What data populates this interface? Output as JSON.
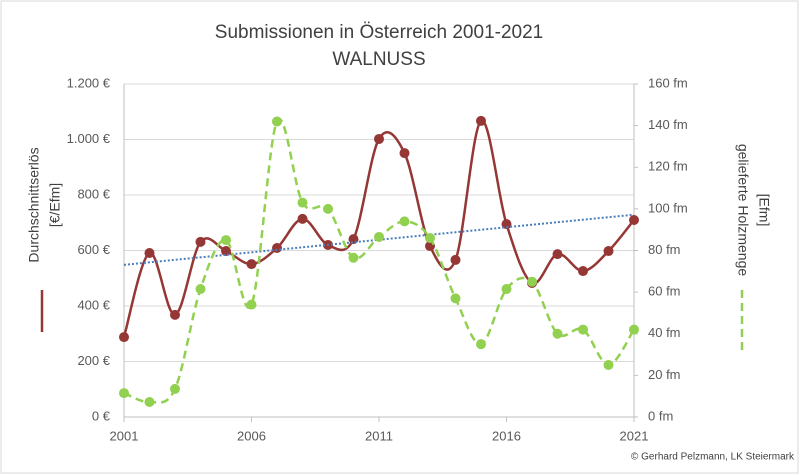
{
  "chart_data": {
    "type": "line",
    "title": [
      "Submissionen in Österreich 2001-2021",
      "WALNUSS"
    ],
    "ylabel": [
      "Durchschnittserlös",
      "[€/Efm]"
    ],
    "y2label": [
      "gelieferte Holzmenge",
      "[Efm]"
    ],
    "footer": "© Gerhard Pelzmann, LK Steiermark",
    "x": [
      2001,
      2002,
      2003,
      2004,
      2005,
      2006,
      2007,
      2008,
      2009,
      2010,
      2011,
      2012,
      2013,
      2014,
      2015,
      2016,
      2017,
      2018,
      2019,
      2020,
      2021
    ],
    "xlim": [
      2001,
      2021
    ],
    "xticks": [
      2001,
      2006,
      2011,
      2016,
      2021
    ],
    "ylim": [
      0,
      1200
    ],
    "yticks": [
      {
        "value": 0,
        "label": "0 €"
      },
      {
        "value": 200,
        "label": "200 €"
      },
      {
        "value": 400,
        "label": "400 €"
      },
      {
        "value": 600,
        "label": "600 €"
      },
      {
        "value": 800,
        "label": "800 €"
      },
      {
        "value": 1000,
        "label": "1.000 €"
      },
      {
        "value": 1200,
        "label": "1.200 €"
      }
    ],
    "y2lim": [
      0,
      160
    ],
    "y2ticks": [
      {
        "value": 0,
        "label": "0 fm"
      },
      {
        "value": 20,
        "label": "20 fm"
      },
      {
        "value": 40,
        "label": "40 fm"
      },
      {
        "value": 60,
        "label": "60 fm"
      },
      {
        "value": 80,
        "label": "80 fm"
      },
      {
        "value": 100,
        "label": "100 fm"
      },
      {
        "value": 120,
        "label": "120 fm"
      },
      {
        "value": 140,
        "label": "140 fm"
      },
      {
        "value": 160,
        "label": "160 fm"
      }
    ],
    "grid": true,
    "series": [
      {
        "color": "#953735",
        "dash": false,
        "trendline": true,
        "trendline_color": "#4a7ebb",
        "values": [
          288,
          591,
          368,
          631,
          598,
          551,
          609,
          714,
          620,
          641,
          1002,
          951,
          616,
          566,
          1067,
          695,
          483,
          587,
          526,
          598,
          710
        ]
      },
      {
        "color": "#92d050",
        "dash": true,
        "axis": "y2",
        "values": [
          11.5,
          7.2,
          13.5,
          61.5,
          85,
          54,
          142,
          103,
          100,
          76.5,
          86.5,
          94,
          86,
          57,
          35,
          61.5,
          65,
          40,
          42,
          25,
          42
        ]
      }
    ]
  }
}
